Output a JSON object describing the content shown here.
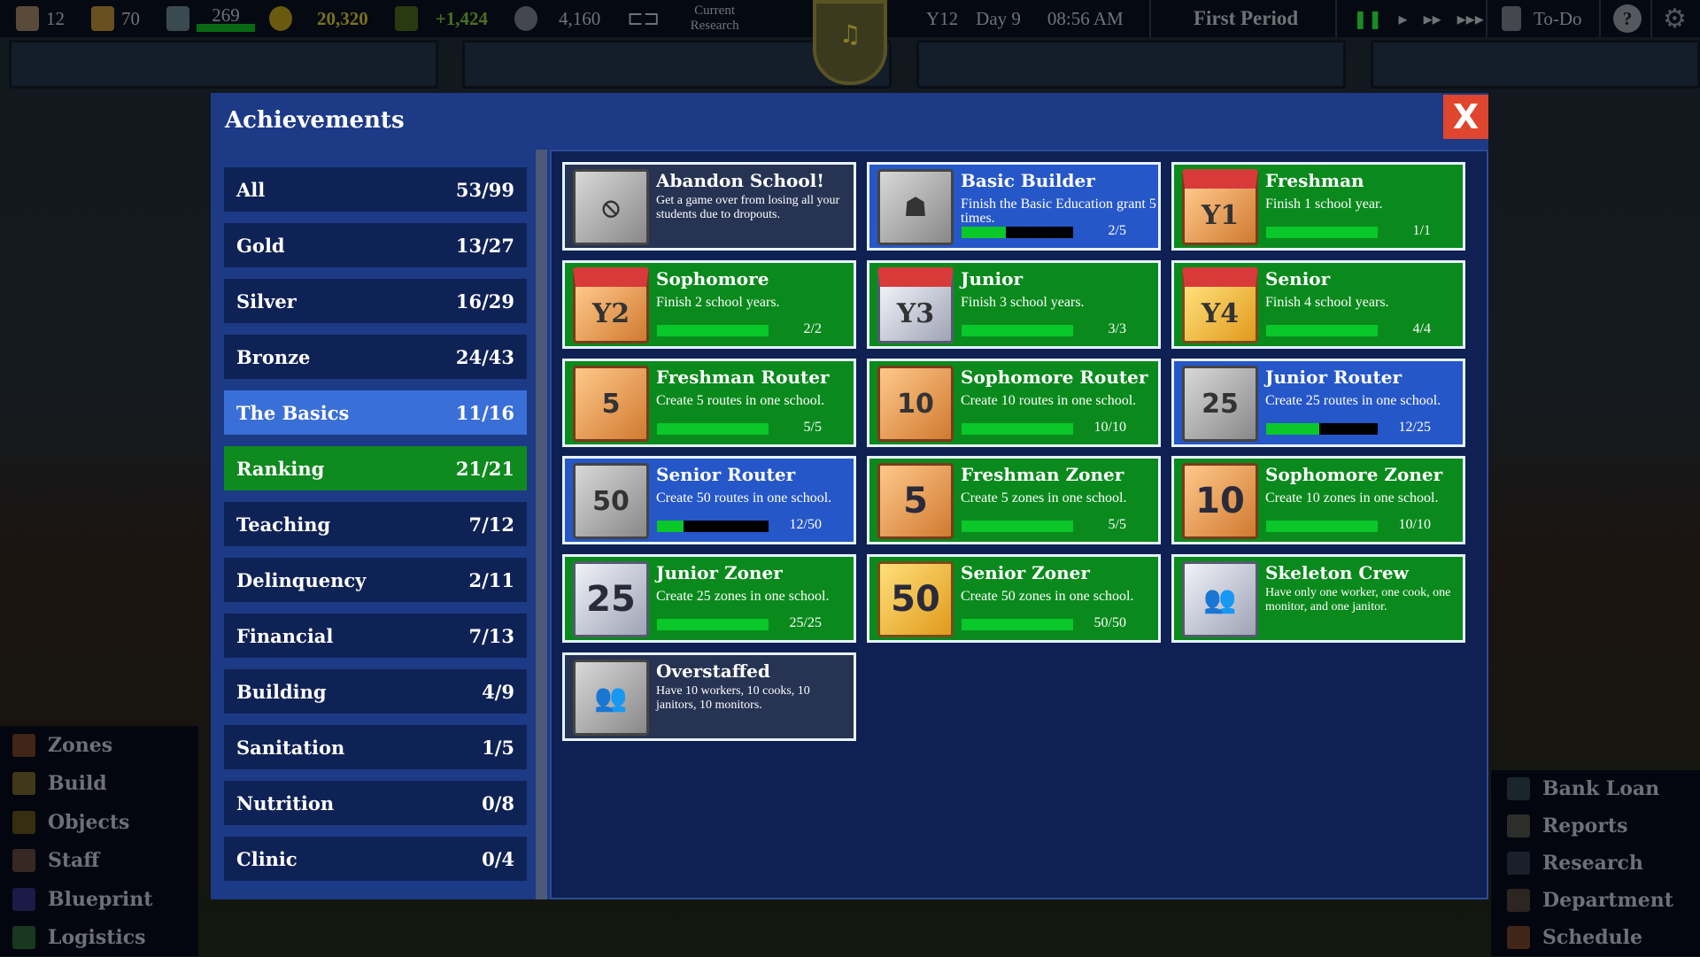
{
  "topbar": {
    "students": "12",
    "teachers": "70",
    "staff_count": "269",
    "money": "20,320",
    "income": "+1,424",
    "reputation": "4,160",
    "research_label": "Current Research",
    "year": "Y12",
    "day": "Day 9",
    "time": "08:56 AM",
    "period": "First Period",
    "todo": "To-Do",
    "capacity_progress": 1.0
  },
  "modal": {
    "title": "Achievements",
    "close": "X"
  },
  "categories": [
    {
      "label": "All",
      "count": "53/99",
      "state": "normal"
    },
    {
      "label": "Gold",
      "count": "13/27",
      "state": "normal"
    },
    {
      "label": "Silver",
      "count": "16/29",
      "state": "normal"
    },
    {
      "label": "Bronze",
      "count": "24/43",
      "state": "normal"
    },
    {
      "label": "The Basics",
      "count": "11/16",
      "state": "selected"
    },
    {
      "label": "Ranking",
      "count": "21/21",
      "state": "complete"
    },
    {
      "label": "Teaching",
      "count": "7/12",
      "state": "normal"
    },
    {
      "label": "Delinquency",
      "count": "2/11",
      "state": "normal"
    },
    {
      "label": "Financial",
      "count": "7/13",
      "state": "normal"
    },
    {
      "label": "Building",
      "count": "4/9",
      "state": "normal"
    },
    {
      "label": "Sanitation",
      "count": "1/5",
      "state": "normal"
    },
    {
      "label": "Nutrition",
      "count": "0/8",
      "state": "normal"
    },
    {
      "label": "Clinic",
      "count": "0/4",
      "state": "normal"
    }
  ],
  "achievements": [
    {
      "title": "Abandon School!",
      "desc": "Get a game over from losing all your students due to dropouts.",
      "state": "locked",
      "tier": "grey",
      "icon": "no-students-icon",
      "glyph": "⦸"
    },
    {
      "title": "Basic Builder",
      "desc": "Finish the Basic Education grant 5 times.",
      "state": "progress",
      "tier": "grey",
      "icon": "builder-icon",
      "glyph": "☗",
      "count": "2/5",
      "progress": 0.4
    },
    {
      "title": "Freshman",
      "desc": "Finish 1 school year.",
      "state": "complete",
      "tier": "bronze",
      "icon": "calendar-icon",
      "glyph": "Y1",
      "count": "1/1",
      "progress": 1
    },
    {
      "title": "Sophomore",
      "desc": "Finish 2 school years.",
      "state": "complete",
      "tier": "bronze",
      "icon": "calendar-icon",
      "glyph": "Y2",
      "count": "2/2",
      "progress": 1
    },
    {
      "title": "Junior",
      "desc": "Finish 3 school years.",
      "state": "complete",
      "tier": "silver",
      "icon": "calendar-icon",
      "glyph": "Y3",
      "count": "3/3",
      "progress": 1
    },
    {
      "title": "Senior",
      "desc": "Finish 4 school years.",
      "state": "complete",
      "tier": "gold",
      "icon": "calendar-icon",
      "glyph": "Y4",
      "count": "4/4",
      "progress": 1
    },
    {
      "title": "Freshman Router",
      "desc": "Create 5 routes in one school.",
      "state": "complete",
      "tier": "bronze",
      "icon": "route-icon",
      "glyph": "5",
      "count": "5/5",
      "progress": 1
    },
    {
      "title": "Sophomore Router",
      "desc": "Create 10 routes in one school.",
      "state": "complete",
      "tier": "bronze",
      "icon": "route-icon",
      "glyph": "10",
      "count": "10/10",
      "progress": 1
    },
    {
      "title": "Junior Router",
      "desc": "Create 25 routes in one school.",
      "state": "progress",
      "tier": "grey",
      "icon": "route-icon",
      "glyph": "25",
      "count": "12/25",
      "progress": 0.48
    },
    {
      "title": "Senior Router",
      "desc": "Create 50 routes in one school.",
      "state": "progress",
      "tier": "grey",
      "icon": "route-icon",
      "glyph": "50",
      "count": "12/50",
      "progress": 0.24
    },
    {
      "title": "Freshman Zoner",
      "desc": "Create 5 zones in one school.",
      "state": "complete",
      "tier": "bronze",
      "icon": "zone-icon",
      "glyph": "5",
      "count": "5/5",
      "progress": 1
    },
    {
      "title": "Sophomore Zoner",
      "desc": "Create 10 zones in one school.",
      "state": "complete",
      "tier": "bronze",
      "icon": "zone-icon",
      "glyph": "10",
      "count": "10/10",
      "progress": 1
    },
    {
      "title": "Junior Zoner",
      "desc": "Create 25 zones in one school.",
      "state": "complete",
      "tier": "silver",
      "icon": "zone-icon",
      "glyph": "25",
      "count": "25/25",
      "progress": 1
    },
    {
      "title": "Senior Zoner",
      "desc": "Create 50 zones in one school.",
      "state": "complete",
      "tier": "gold",
      "icon": "zone-icon",
      "glyph": "50",
      "count": "50/50",
      "progress": 1
    },
    {
      "title": "Skeleton Crew",
      "desc": "Have only one worker, one cook, one monitor, and one janitor.",
      "state": "complete",
      "tier": "silver",
      "icon": "staff-group-icon",
      "glyph": "👥"
    },
    {
      "title": "Overstaffed",
      "desc": "Have 10 workers, 10 cooks, 10 janitors, 10 monitors.",
      "state": "locked",
      "tier": "grey",
      "icon": "staff-group-icon",
      "glyph": "👥"
    }
  ],
  "left_menu": [
    "Zones",
    "Build",
    "Objects",
    "Staff",
    "Blueprint",
    "Logistics"
  ],
  "right_menu": [
    "Bank Loan",
    "Reports",
    "Research",
    "Department",
    "Schedule"
  ],
  "colors": {
    "modal": "#1c3a86",
    "complete": "#0a8a1c",
    "progress": "#2657c8",
    "locked": "#263352",
    "close": "#e0452e"
  }
}
